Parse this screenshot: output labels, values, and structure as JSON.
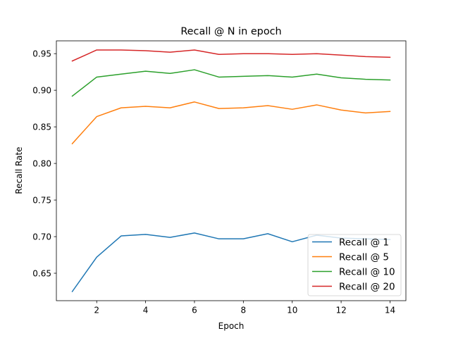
{
  "chart_data": {
    "type": "line",
    "title": "Recall @ N in epoch",
    "xlabel": "Epoch",
    "ylabel": "Recall Rate",
    "xlim": [
      0.35,
      14.65
    ],
    "ylim": [
      0.6125,
      0.9675
    ],
    "xticks": [
      2,
      4,
      6,
      8,
      10,
      12,
      14
    ],
    "yticks": [
      0.65,
      0.7,
      0.75,
      0.8,
      0.85,
      0.9,
      0.95
    ],
    "legend_position": "lower-right",
    "x": [
      1,
      2,
      3,
      4,
      5,
      6,
      7,
      8,
      9,
      10,
      11,
      12,
      13,
      14
    ],
    "series": [
      {
        "name": "Recall @ 1",
        "color": "#1f77b4",
        "values": [
          0.625,
          0.672,
          0.701,
          0.703,
          0.699,
          0.705,
          0.697,
          0.697,
          0.704,
          0.693,
          0.702,
          0.698,
          0.697,
          0.696
        ]
      },
      {
        "name": "Recall @ 5",
        "color": "#ff7f0e",
        "values": [
          0.827,
          0.864,
          0.876,
          0.878,
          0.876,
          0.884,
          0.875,
          0.876,
          0.879,
          0.874,
          0.88,
          0.873,
          0.869,
          0.871
        ]
      },
      {
        "name": "Recall @ 10",
        "color": "#2ca02c",
        "values": [
          0.892,
          0.918,
          0.922,
          0.926,
          0.923,
          0.928,
          0.918,
          0.919,
          0.92,
          0.918,
          0.922,
          0.917,
          0.915,
          0.914
        ]
      },
      {
        "name": "Recall @ 20",
        "color": "#d62728",
        "values": [
          0.94,
          0.955,
          0.955,
          0.954,
          0.952,
          0.955,
          0.949,
          0.95,
          0.95,
          0.949,
          0.95,
          0.948,
          0.946,
          0.945
        ]
      }
    ]
  }
}
